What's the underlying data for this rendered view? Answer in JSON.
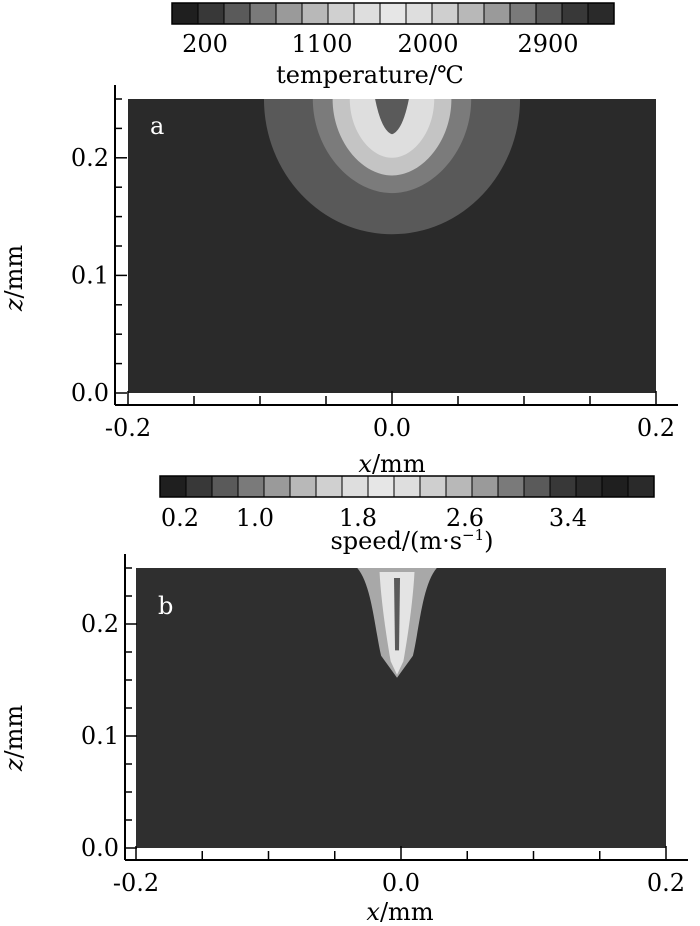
{
  "chart_data": [
    {
      "type": "heatmap",
      "panel_label": "a",
      "xlabel_italic": "x",
      "xlabel_unit": "/mm",
      "ylabel_italic": "z",
      "ylabel_unit": "/mm",
      "xticks": [
        "-0.2",
        "0.0",
        "0.2"
      ],
      "yticks": [
        "0.0",
        "0.1",
        "0.2"
      ],
      "xlim": [
        -0.2,
        0.2
      ],
      "ylim": [
        0.0,
        0.25
      ],
      "colorbar": {
        "label": "temperature/℃",
        "tick_labels": [
          "200",
          "1100",
          "2000",
          "2900"
        ],
        "colors": [
          "#1f1f1f",
          "#383838",
          "#5a5a5a",
          "#7a7a7a",
          "#9a9a9a",
          "#b8b8b8",
          "#d0d0d0",
          "#dedede",
          "#e6e6e6",
          "#dedede",
          "#cfcfcf",
          "#b8b8b8",
          "#9a9a9a",
          "#7a7a7a",
          "#5a5a5a",
          "#383838",
          "#2a2a2a"
        ]
      },
      "background_color": "#2a2a2a",
      "contours": [
        {
          "color": "#595959",
          "center_x": 0.0,
          "top_z": 0.25,
          "half_width": 0.097,
          "depth": 0.115
        },
        {
          "color": "#7b7b7b",
          "center_x": 0.0,
          "top_z": 0.25,
          "half_width": 0.06,
          "depth": 0.08
        },
        {
          "color": "#c4c4c4",
          "center_x": 0.0,
          "top_z": 0.25,
          "half_width": 0.045,
          "depth": 0.065
        },
        {
          "color": "#dedede",
          "center_x": 0.0,
          "top_z": 0.25,
          "half_width": 0.032,
          "depth": 0.05
        }
      ],
      "notch": {
        "center_x": 0.0,
        "depth": 0.03,
        "half_width": 0.008,
        "color": "#5a5a5a"
      }
    },
    {
      "type": "heatmap",
      "panel_label": "b",
      "xlabel_italic": "x",
      "xlabel_unit": "/mm",
      "ylabel_italic": "z",
      "ylabel_unit": "/mm",
      "xticks": [
        "-0.2",
        "0.0",
        "0.2"
      ],
      "yticks": [
        "0.0",
        "0.1",
        "0.2"
      ],
      "xlim": [
        -0.2,
        0.2
      ],
      "ylim": [
        0.0,
        0.25
      ],
      "colorbar": {
        "label_main": "speed/(m·s",
        "label_sup": "−1",
        "label_end": ")",
        "tick_labels": [
          "0.2",
          "1.0",
          "1.8",
          "2.6",
          "3.4"
        ],
        "colors": [
          "#1f1f1f",
          "#383838",
          "#5a5a5a",
          "#7a7a7a",
          "#9a9a9a",
          "#b8b8b8",
          "#d0d0d0",
          "#dedede",
          "#e6e6e6",
          "#dedede",
          "#cfcfcf",
          "#b8b8b8",
          "#9a9a9a",
          "#7a7a7a",
          "#5a5a5a",
          "#383838",
          "#2a2a2a",
          "#1f1f1f",
          "#2a2a2a"
        ]
      },
      "background_color": "#2f2f2f",
      "jet": {
        "center_x": -0.003,
        "top_z": 0.25,
        "bottom_z": 0.152,
        "half_width_top": 0.03,
        "half_width_mid": 0.012
      }
    }
  ]
}
